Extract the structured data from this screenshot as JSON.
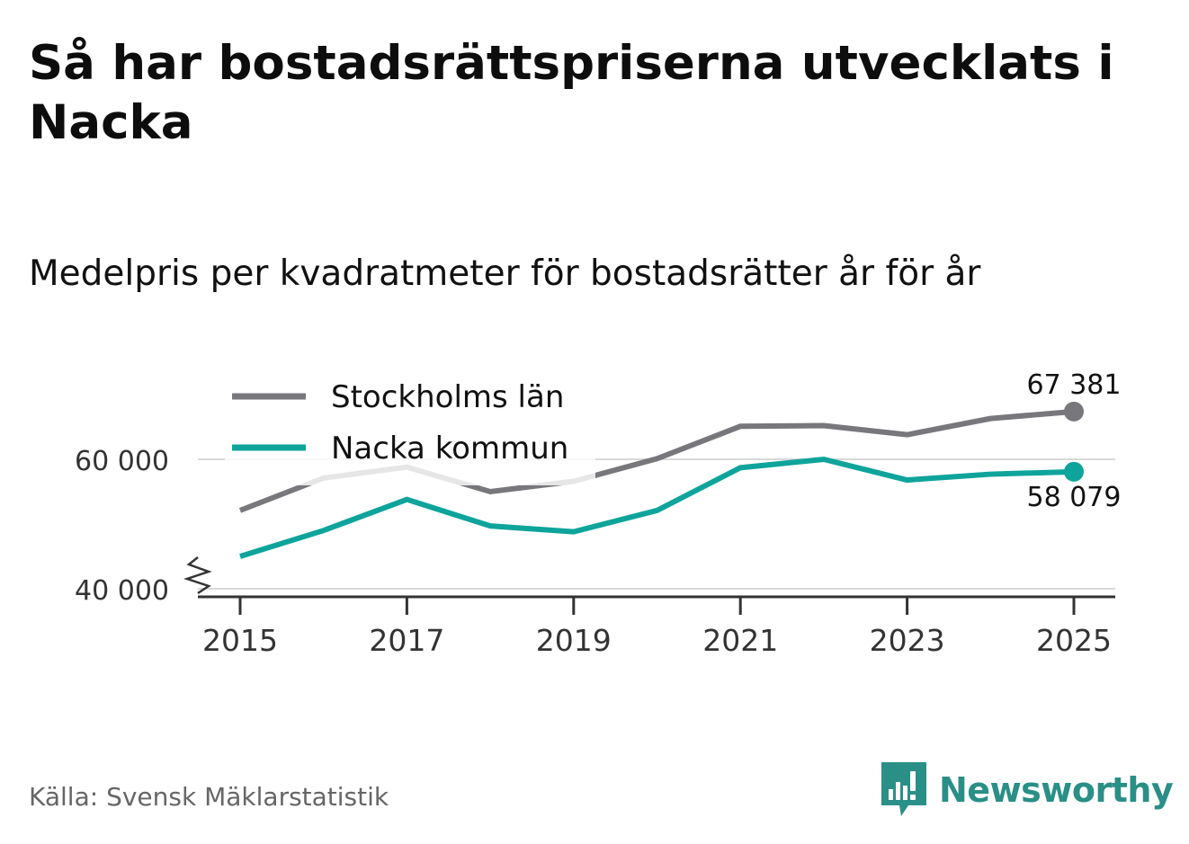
{
  "header": {
    "title": "Så har bostadsrättspriserna utvecklats i Nacka",
    "subtitle": "Medelpris per kvadratmeter för bostadsrätter år för år"
  },
  "footer": {
    "source": "Källa: Svensk Mäklarstatistik",
    "brand": "Newsworthy"
  },
  "colors": {
    "stockholm": "#77777c",
    "nacka": "#0ea49b",
    "grid": "#d9d9d9",
    "axis": "#333333",
    "brand": "#2a8f86"
  },
  "chart_data": {
    "type": "line",
    "title": "Medelpris per kvadratmeter för bostadsrätter år för år",
    "xlabel": "",
    "ylabel": "",
    "x": [
      2015,
      2016,
      2017,
      2018,
      2019,
      2020,
      2021,
      2022,
      2023,
      2024,
      2025
    ],
    "xlim": [
      2014.5,
      2025.5
    ],
    "ylim": [
      38500,
      70000
    ],
    "y_ticks": [
      40000,
      60000
    ],
    "y_tick_labels": [
      "40 000",
      "60 000"
    ],
    "x_ticks": [
      2015,
      2017,
      2019,
      2021,
      2023,
      2025
    ],
    "x_tick_labels": [
      "2015",
      "2017",
      "2019",
      "2021",
      "2023",
      "2025"
    ],
    "axis_break": true,
    "grid": "horizontal",
    "legend_position": "top-left",
    "series": [
      {
        "name": "Stockholms län",
        "key": "stockholm",
        "values": [
          52100,
          57100,
          58800,
          55000,
          56600,
          60100,
          65100,
          65200,
          63800,
          66300,
          67381
        ],
        "end_label": "67 381"
      },
      {
        "name": "Nacka kommun",
        "key": "nacka",
        "values": [
          45000,
          49000,
          53800,
          49700,
          48800,
          52100,
          58700,
          60000,
          56800,
          57700,
          58079
        ],
        "end_label": "58 079"
      }
    ]
  }
}
